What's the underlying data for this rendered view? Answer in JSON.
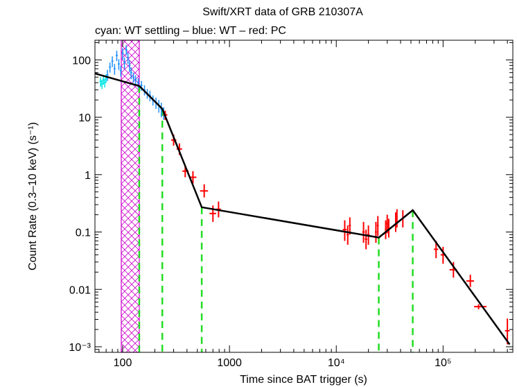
{
  "chart_data": {
    "type": "scatter",
    "title": "Swift/XRT data of GRB 210307A",
    "subtitle": "cyan: WT settling – blue: WT – red: PC",
    "xlabel": "Time since BAT trigger (s)",
    "ylabel": "Count Rate (0.3–10 keV) (s⁻¹)",
    "xscale": "log",
    "yscale": "log",
    "xlim": [
      55,
      450000
    ],
    "ylim": [
      0.0008,
      220
    ],
    "x_ticks": [
      {
        "value": 100,
        "label": "100"
      },
      {
        "value": 1000,
        "label": "1000"
      },
      {
        "value": 10000,
        "label": "10⁴"
      },
      {
        "value": 100000,
        "label": "10⁵"
      }
    ],
    "y_ticks": [
      {
        "value": 100,
        "label": "100"
      },
      {
        "value": 10,
        "label": "10"
      },
      {
        "value": 1,
        "label": "1"
      },
      {
        "value": 0.1,
        "label": "0.1"
      },
      {
        "value": 0.01,
        "label": "0.01"
      },
      {
        "value": 0.001,
        "label": "10⁻³"
      }
    ],
    "colors": {
      "wt_settling": "#00e5e5",
      "wt": "#1e90ff",
      "pc": "#ff0000",
      "model": "#000000",
      "breaks": "#22dd22",
      "flare_region": "#cc00cc"
    },
    "excluded_region": {
      "x0": 97,
      "x1": 143
    },
    "model_line": [
      {
        "x": 55,
        "y": 58
      },
      {
        "x": 143,
        "y": 35
      },
      {
        "x": 235,
        "y": 14
      },
      {
        "x": 550,
        "y": 0.27
      },
      {
        "x": 25000,
        "y": 0.08
      },
      {
        "x": 52000,
        "y": 0.24
      },
      {
        "x": 420000,
        "y": 0.0011
      }
    ],
    "break_times": [
      143,
      235,
      550,
      25000,
      52000
    ],
    "series": [
      {
        "name": "WT settling",
        "color_key": "wt_settling",
        "points": [
          {
            "x": 62,
            "y": 42,
            "yerr": 8
          },
          {
            "x": 64,
            "y": 38,
            "yerr": 7
          },
          {
            "x": 66,
            "y": 45,
            "yerr": 8
          },
          {
            "x": 68,
            "y": 40,
            "yerr": 7
          },
          {
            "x": 70,
            "y": 48,
            "yerr": 8
          }
        ]
      },
      {
        "name": "WT",
        "color_key": "wt",
        "points": [
          {
            "x": 72,
            "y": 55,
            "yerr": 12
          },
          {
            "x": 76,
            "y": 75,
            "yerr": 15
          },
          {
            "x": 80,
            "y": 95,
            "yerr": 20
          },
          {
            "x": 84,
            "y": 70,
            "yerr": 15
          },
          {
            "x": 88,
            "y": 120,
            "yerr": 25
          },
          {
            "x": 92,
            "y": 85,
            "yerr": 18
          },
          {
            "x": 96,
            "y": 65,
            "yerr": 14
          },
          {
            "x": 100,
            "y": 130,
            "yerr": 30
          },
          {
            "x": 104,
            "y": 90,
            "yerr": 20
          },
          {
            "x": 108,
            "y": 150,
            "yerr": 30
          },
          {
            "x": 112,
            "y": 110,
            "yerr": 25
          },
          {
            "x": 116,
            "y": 80,
            "yerr": 18
          },
          {
            "x": 120,
            "y": 60,
            "yerr": 14
          },
          {
            "x": 126,
            "y": 50,
            "yerr": 10
          },
          {
            "x": 132,
            "y": 45,
            "yerr": 9
          },
          {
            "x": 140,
            "y": 40,
            "yerr": 8
          },
          {
            "x": 150,
            "y": 36,
            "yerr": 7
          },
          {
            "x": 160,
            "y": 30,
            "yerr": 6
          },
          {
            "x": 170,
            "y": 26,
            "yerr": 5
          },
          {
            "x": 180,
            "y": 24,
            "yerr": 5
          },
          {
            "x": 192,
            "y": 20,
            "yerr": 4
          },
          {
            "x": 205,
            "y": 18,
            "yerr": 4
          },
          {
            "x": 218,
            "y": 16,
            "yerr": 4
          },
          {
            "x": 230,
            "y": 14,
            "yerr": 4
          },
          {
            "x": 242,
            "y": 12,
            "yerr": 3
          }
        ]
      },
      {
        "name": "PC",
        "color_key": "pc",
        "points": [
          {
            "x": 250,
            "y": 11,
            "x0": 240,
            "x1": 262,
            "ylo": 9,
            "yhi": 13
          },
          {
            "x": 300,
            "y": 4.0,
            "x0": 285,
            "x1": 318,
            "ylo": 3.2,
            "yhi": 5.0
          },
          {
            "x": 340,
            "y": 2.8,
            "x0": 320,
            "x1": 360,
            "ylo": 2.2,
            "yhi": 3.5
          },
          {
            "x": 385,
            "y": 1.15,
            "x0": 362,
            "x1": 415,
            "ylo": 0.9,
            "yhi": 1.45
          },
          {
            "x": 455,
            "y": 0.9,
            "x0": 420,
            "x1": 490,
            "ylo": 0.7,
            "yhi": 1.15
          },
          {
            "x": 580,
            "y": 0.52,
            "x0": 530,
            "x1": 630,
            "ylo": 0.4,
            "yhi": 0.68
          },
          {
            "x": 700,
            "y": 0.21,
            "x0": 650,
            "x1": 750,
            "ylo": 0.15,
            "yhi": 0.29
          },
          {
            "x": 790,
            "y": 0.25,
            "x0": 755,
            "x1": 830,
            "ylo": 0.18,
            "yhi": 0.34
          },
          {
            "x": 12000,
            "y": 0.11,
            "x0": 11500,
            "x1": 12500,
            "ylo": 0.07,
            "yhi": 0.16
          },
          {
            "x": 12800,
            "y": 0.09,
            "x0": 12500,
            "x1": 13100,
            "ylo": 0.06,
            "yhi": 0.13
          },
          {
            "x": 13400,
            "y": 0.13,
            "x0": 13100,
            "x1": 13700,
            "ylo": 0.09,
            "yhi": 0.18
          },
          {
            "x": 18000,
            "y": 0.1,
            "x0": 17500,
            "x1": 18500,
            "ylo": 0.065,
            "yhi": 0.15
          },
          {
            "x": 19000,
            "y": 0.075,
            "x0": 18500,
            "x1": 19500,
            "ylo": 0.05,
            "yhi": 0.11
          },
          {
            "x": 20000,
            "y": 0.09,
            "x0": 19500,
            "x1": 20500,
            "ylo": 0.06,
            "yhi": 0.13
          },
          {
            "x": 23500,
            "y": 0.1,
            "x0": 23000,
            "x1": 24000,
            "ylo": 0.065,
            "yhi": 0.15
          },
          {
            "x": 24500,
            "y": 0.13,
            "x0": 24000,
            "x1": 25000,
            "ylo": 0.085,
            "yhi": 0.19
          },
          {
            "x": 29000,
            "y": 0.11,
            "x0": 28500,
            "x1": 29500,
            "ylo": 0.075,
            "yhi": 0.16
          },
          {
            "x": 30000,
            "y": 0.14,
            "x0": 29500,
            "x1": 30500,
            "ylo": 0.095,
            "yhi": 0.2
          },
          {
            "x": 31000,
            "y": 0.12,
            "x0": 30500,
            "x1": 31500,
            "ylo": 0.08,
            "yhi": 0.17
          },
          {
            "x": 36000,
            "y": 0.15,
            "x0": 35500,
            "x1": 36500,
            "ylo": 0.1,
            "yhi": 0.22
          },
          {
            "x": 37000,
            "y": 0.18,
            "x0": 36500,
            "x1": 37500,
            "ylo": 0.12,
            "yhi": 0.25
          },
          {
            "x": 42000,
            "y": 0.17,
            "x0": 41500,
            "x1": 42500,
            "ylo": 0.12,
            "yhi": 0.24
          },
          {
            "x": 86000,
            "y": 0.05,
            "x0": 82000,
            "x1": 90000,
            "ylo": 0.035,
            "yhi": 0.07
          },
          {
            "x": 100000,
            "y": 0.04,
            "x0": 95000,
            "x1": 105000,
            "ylo": 0.028,
            "yhi": 0.055
          },
          {
            "x": 125000,
            "y": 0.022,
            "x0": 115000,
            "x1": 135000,
            "ylo": 0.016,
            "yhi": 0.03
          },
          {
            "x": 180000,
            "y": 0.014,
            "x0": 165000,
            "x1": 195000,
            "ylo": 0.011,
            "yhi": 0.018
          },
          {
            "x": 215000,
            "y": 0.005,
            "x0": 195000,
            "x1": 255000,
            "ylo": 0.0045,
            "yhi": 0.0055
          },
          {
            "x": 400000,
            "y": 0.0019,
            "x0": 380000,
            "x1": 420000,
            "ylo": 0.0011,
            "yhi": 0.0031
          }
        ]
      }
    ]
  }
}
